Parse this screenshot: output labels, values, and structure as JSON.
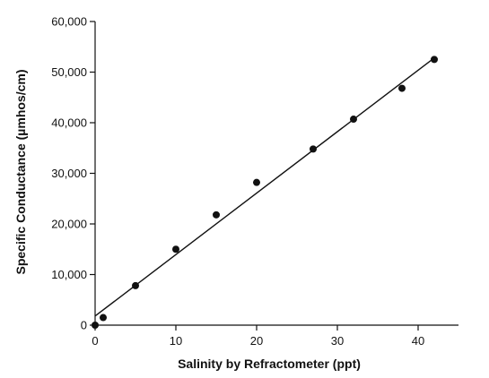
{
  "chart_data": {
    "type": "scatter",
    "title": "",
    "xlabel": "Salinity by Refractometer (ppt)",
    "ylabel": "Specific Conductance (µmhos/cm)",
    "xlim": [
      0,
      45
    ],
    "ylim": [
      0,
      60000
    ],
    "x_ticks": [
      0,
      10,
      20,
      30,
      40
    ],
    "x_tick_labels": [
      "0",
      "10",
      "20",
      "30",
      "40"
    ],
    "y_ticks": [
      0,
      10000,
      20000,
      30000,
      40000,
      50000,
      60000
    ],
    "y_tick_labels": [
      "0",
      "10,000",
      "20,000",
      "30,000",
      "40,000",
      "50,000",
      "60,000"
    ],
    "grid": false,
    "legend": "none",
    "series": [
      {
        "x": [
          0,
          1,
          5,
          10,
          15,
          20,
          27,
          32,
          38,
          42
        ],
        "y": [
          0,
          1500,
          7800,
          15000,
          21800,
          28200,
          34800,
          40700,
          46800,
          52500
        ]
      }
    ],
    "fit_line": {
      "x": [
        0,
        42
      ],
      "y": [
        1800,
        52800
      ]
    },
    "colors": {
      "marker": "#111111",
      "line": "#111111",
      "axis": "#111111"
    }
  }
}
